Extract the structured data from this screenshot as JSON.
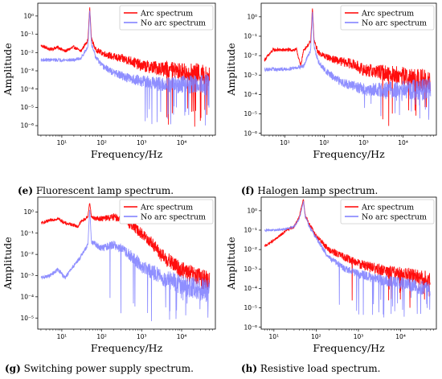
{
  "chart_data": [
    {
      "panel": "e",
      "type": "line",
      "caption_label": "(e)",
      "caption_text": " Fluorescent lamp spectrum.",
      "xlabel": "Frequency/Hz",
      "ylabel": "Amplitude",
      "xscale": "log",
      "yscale": "log",
      "xlim": [
        2.5,
        70000
      ],
      "ylim": [
        3e-07,
        5
      ],
      "xticks": [
        {
          "v": 10,
          "t": "10¹"
        },
        {
          "v": 100,
          "t": "10²"
        },
        {
          "v": 1000,
          "t": "10³"
        },
        {
          "v": 10000,
          "t": "10⁴"
        }
      ],
      "yticks": [
        {
          "v": 1e-06,
          "t": "10⁻⁶"
        },
        {
          "v": 1e-05,
          "t": "10⁻⁵"
        },
        {
          "v": 0.0001,
          "t": "10⁻⁴"
        },
        {
          "v": 0.001,
          "t": "10⁻³"
        },
        {
          "v": 0.01,
          "t": "10⁻²"
        },
        {
          "v": 0.1,
          "t": "10⁻¹"
        },
        {
          "v": 1,
          "t": "10⁰"
        }
      ],
      "legend": "top-right",
      "series": [
        {
          "name": "Arc spectrum",
          "color": "#ff0000",
          "points": [
            [
              3,
              0.025
            ],
            [
              5,
              0.015
            ],
            [
              8,
              0.02
            ],
            [
              12,
              0.012
            ],
            [
              20,
              0.02
            ],
            [
              30,
              0.012
            ],
            [
              45,
              0.05
            ],
            [
              50,
              3
            ],
            [
              55,
              0.06
            ],
            [
              70,
              0.015
            ],
            [
              100,
              0.01
            ],
            [
              200,
              0.006
            ],
            [
              500,
              0.004
            ],
            [
              1000,
              0.002
            ],
            [
              3000,
              0.0015
            ],
            [
              10000,
              0.001
            ],
            [
              30000,
              0.0008
            ],
            [
              50000,
              0.0005
            ]
          ],
          "spread": 1.2,
          "floor": [
            3000,
            8e-07
          ]
        },
        {
          "name": "No arc spectrum",
          "color": "#7b7bff",
          "points": [
            [
              3,
              0.004
            ],
            [
              10,
              0.004
            ],
            [
              20,
              0.004
            ],
            [
              30,
              0.005
            ],
            [
              45,
              0.02
            ],
            [
              50,
              2.5
            ],
            [
              55,
              0.03
            ],
            [
              70,
              0.006
            ],
            [
              100,
              0.002
            ],
            [
              200,
              0.0008
            ],
            [
              500,
              0.0004
            ],
            [
              1000,
              0.0003
            ],
            [
              3000,
              0.0002
            ],
            [
              10000,
              0.0002
            ],
            [
              50000,
              0.0002
            ]
          ],
          "spread": 1.2,
          "floor": [
            1000,
            1e-06
          ]
        }
      ]
    },
    {
      "panel": "f",
      "type": "line",
      "caption_label": "(f)",
      "caption_text": " Halogen lamp spectrum.",
      "xlabel": "Frequency/Hz",
      "ylabel": "Amplitude",
      "xscale": "log",
      "yscale": "log",
      "xlim": [
        2.5,
        70000
      ],
      "ylim": [
        8e-07,
        5
      ],
      "xticks": [
        {
          "v": 10,
          "t": "10¹"
        },
        {
          "v": 100,
          "t": "10²"
        },
        {
          "v": 1000,
          "t": "10³"
        },
        {
          "v": 10000,
          "t": "10⁴"
        }
      ],
      "yticks": [
        {
          "v": 1e-06,
          "t": "10⁻⁶"
        },
        {
          "v": 1e-05,
          "t": "10⁻⁵"
        },
        {
          "v": 0.0001,
          "t": "10⁻⁴"
        },
        {
          "v": 0.001,
          "t": "10⁻³"
        },
        {
          "v": 0.01,
          "t": "10⁻²"
        },
        {
          "v": 0.1,
          "t": "10⁻¹"
        },
        {
          "v": 1,
          "t": "10⁰"
        }
      ],
      "legend": "top-right",
      "series": [
        {
          "name": "Arc spectrum",
          "color": "#ff0000",
          "points": [
            [
              3,
              0.006
            ],
            [
              5,
              0.02
            ],
            [
              8,
              0.02
            ],
            [
              12,
              0.02
            ],
            [
              20,
              0.02
            ],
            [
              25,
              0.003
            ],
            [
              30,
              0.02
            ],
            [
              45,
              0.05
            ],
            [
              50,
              3
            ],
            [
              55,
              0.06
            ],
            [
              70,
              0.015
            ],
            [
              100,
              0.01
            ],
            [
              200,
              0.006
            ],
            [
              500,
              0.004
            ],
            [
              1000,
              0.002
            ],
            [
              3000,
              0.0015
            ],
            [
              10000,
              0.001
            ],
            [
              50000,
              0.0005
            ]
          ],
          "spread": 1.2,
          "floor": [
            3000,
            2e-06
          ]
        },
        {
          "name": "No arc spectrum",
          "color": "#7b7bff",
          "points": [
            [
              3,
              0.002
            ],
            [
              10,
              0.002
            ],
            [
              20,
              0.0025
            ],
            [
              30,
              0.003
            ],
            [
              45,
              0.02
            ],
            [
              50,
              2
            ],
            [
              55,
              0.03
            ],
            [
              70,
              0.005
            ],
            [
              100,
              0.002
            ],
            [
              200,
              0.0006
            ],
            [
              500,
              0.0003
            ],
            [
              1000,
              0.0002
            ],
            [
              3000,
              0.0002
            ],
            [
              10000,
              0.0002
            ],
            [
              50000,
              0.0002
            ]
          ],
          "spread": 1.2,
          "floor": [
            1000,
            5e-06
          ]
        }
      ]
    },
    {
      "panel": "g",
      "type": "line",
      "caption_label": "(g)",
      "caption_text": " Switching power supply spectrum.",
      "xlabel": "Frequency/Hz",
      "ylabel": "Amplitude",
      "xscale": "log",
      "yscale": "log",
      "xlim": [
        2.5,
        70000
      ],
      "ylim": [
        3e-06,
        5
      ],
      "xticks": [
        {
          "v": 10,
          "t": "10¹"
        },
        {
          "v": 100,
          "t": "10²"
        },
        {
          "v": 1000,
          "t": "10³"
        },
        {
          "v": 10000,
          "t": "10⁴"
        }
      ],
      "yticks": [
        {
          "v": 1e-05,
          "t": "10⁻⁵"
        },
        {
          "v": 0.0001,
          "t": "10⁻⁴"
        },
        {
          "v": 0.001,
          "t": "10⁻³"
        },
        {
          "v": 0.01,
          "t": "10⁻²"
        },
        {
          "v": 0.1,
          "t": "10⁻¹"
        },
        {
          "v": 1,
          "t": "10⁰"
        }
      ],
      "legend": "top-right",
      "series": [
        {
          "name": "Arc spectrum",
          "color": "#ff0000",
          "points": [
            [
              3,
              0.3
            ],
            [
              5,
              0.4
            ],
            [
              8,
              0.5
            ],
            [
              12,
              0.3
            ],
            [
              20,
              0.25
            ],
            [
              25,
              0.2
            ],
            [
              30,
              0.35
            ],
            [
              45,
              0.6
            ],
            [
              50,
              3
            ],
            [
              55,
              0.6
            ],
            [
              70,
              0.5
            ],
            [
              100,
              0.5
            ],
            [
              200,
              0.6
            ],
            [
              300,
              0.5
            ],
            [
              500,
              0.3
            ],
            [
              1000,
              0.1
            ],
            [
              2000,
              0.03
            ],
            [
              3000,
              0.01
            ],
            [
              5000,
              0.005
            ],
            [
              10000,
              0.002
            ],
            [
              30000,
              0.0008
            ],
            [
              50000,
              0.0006
            ]
          ],
          "spread": 1.0,
          "floor": null
        },
        {
          "name": "No arc spectrum",
          "color": "#7b7bff",
          "points": [
            [
              3,
              0.0008
            ],
            [
              5,
              0.001
            ],
            [
              8,
              0.002
            ],
            [
              12,
              0.0008
            ],
            [
              20,
              0.003
            ],
            [
              30,
              0.008
            ],
            [
              45,
              0.03
            ],
            [
              50,
              1.5
            ],
            [
              55,
              0.04
            ],
            [
              70,
              0.03
            ],
            [
              100,
              0.02
            ],
            [
              200,
              0.03
            ],
            [
              300,
              0.02
            ],
            [
              500,
              0.01
            ],
            [
              1000,
              0.003
            ],
            [
              3000,
              0.001
            ],
            [
              10000,
              0.0004
            ],
            [
              50000,
              0.0002
            ]
          ],
          "spread": 1.2,
          "floor": [
            100,
            6e-06
          ]
        }
      ]
    },
    {
      "panel": "h",
      "type": "line",
      "caption_label": "(h)",
      "caption_text": " Resistive load spectrum.",
      "xlabel": "Frequency/Hz",
      "ylabel": "Amplitude",
      "xscale": "log",
      "yscale": "log",
      "xlim": [
        5,
        70000
      ],
      "ylim": [
        8e-07,
        5
      ],
      "xticks": [
        {
          "v": 10,
          "t": "10¹"
        },
        {
          "v": 100,
          "t": "10²"
        },
        {
          "v": 1000,
          "t": "10³"
        },
        {
          "v": 10000,
          "t": "10⁴"
        }
      ],
      "yticks": [
        {
          "v": 1e-06,
          "t": "10⁻⁶"
        },
        {
          "v": 1e-05,
          "t": "10⁻⁵"
        },
        {
          "v": 0.0001,
          "t": "10⁻⁴"
        },
        {
          "v": 0.001,
          "t": "10⁻³"
        },
        {
          "v": 0.01,
          "t": "10⁻²"
        },
        {
          "v": 0.1,
          "t": "10⁻¹"
        },
        {
          "v": 1,
          "t": "10⁰"
        }
      ],
      "legend": "top-right",
      "series": [
        {
          "name": "Arc spectrum",
          "color": "#ff0000",
          "points": [
            [
              6,
              0.015
            ],
            [
              10,
              0.03
            ],
            [
              15,
              0.06
            ],
            [
              20,
              0.1
            ],
            [
              30,
              0.15
            ],
            [
              40,
              0.5
            ],
            [
              50,
              4
            ],
            [
              55,
              0.6
            ],
            [
              70,
              0.2
            ],
            [
              100,
              0.05
            ],
            [
              150,
              0.02
            ],
            [
              200,
              0.01
            ],
            [
              500,
              0.004
            ],
            [
              1000,
              0.002
            ],
            [
              3000,
              0.001
            ],
            [
              10000,
              0.0006
            ],
            [
              30000,
              0.0004
            ],
            [
              50000,
              0.0003
            ]
          ],
          "spread": 0.9,
          "floor": [
            500,
            8e-06
          ]
        },
        {
          "name": "No arc spectrum",
          "color": "#7b7bff",
          "points": [
            [
              6,
              0.1
            ],
            [
              10,
              0.1
            ],
            [
              20,
              0.12
            ],
            [
              30,
              0.15
            ],
            [
              40,
              0.4
            ],
            [
              50,
              3
            ],
            [
              55,
              0.5
            ],
            [
              70,
              0.15
            ],
            [
              100,
              0.04
            ],
            [
              150,
              0.01
            ],
            [
              200,
              0.004
            ],
            [
              500,
              0.001
            ],
            [
              1000,
              0.0006
            ],
            [
              3000,
              0.0003
            ],
            [
              10000,
              0.0002
            ],
            [
              50000,
              0.0001
            ]
          ],
          "spread": 0.8,
          "floor": [
            300,
            3e-06
          ]
        }
      ]
    }
  ]
}
